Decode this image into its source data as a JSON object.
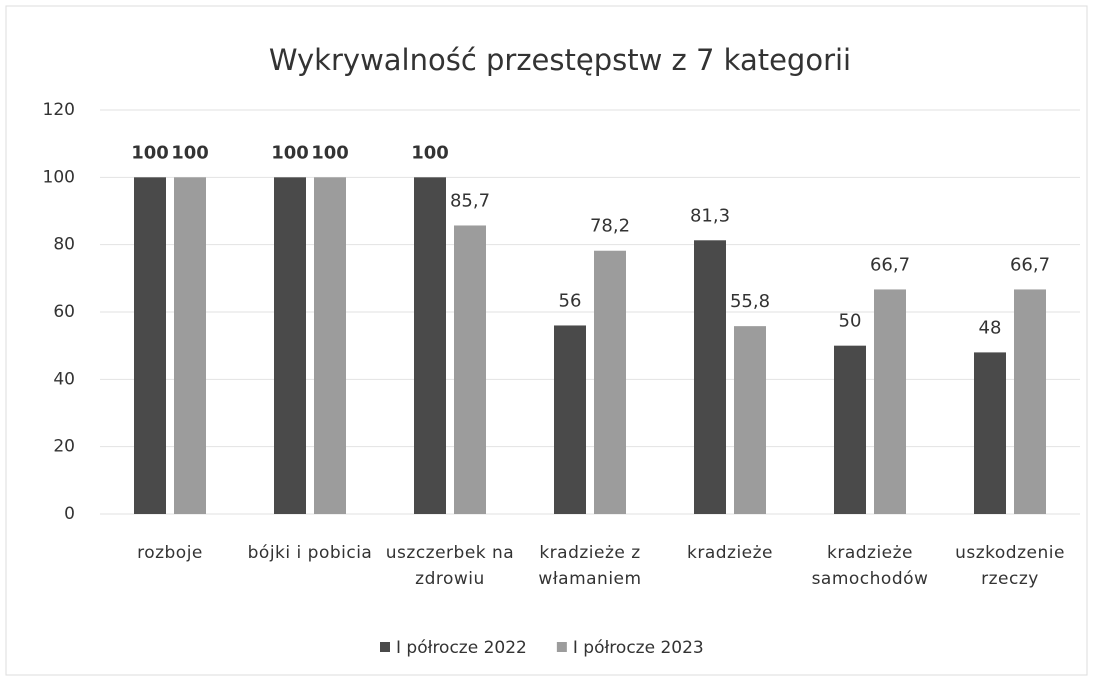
{
  "chart_data": {
    "type": "bar",
    "title": "Wykrywalność przestępstw z 7 kategorii",
    "categories": [
      "rozboje",
      "bójki i pobicia",
      "uszczerbek na zdrowiu",
      "kradzieże z włamaniem",
      "kradzieże",
      "kradzieże samochodów",
      "uszkodzenie rzeczy"
    ],
    "series": [
      {
        "name": "I półrocze 2022",
        "color": "#4a4a4a",
        "values": [
          100,
          100,
          100,
          56,
          81.3,
          50,
          48
        ],
        "value_labels": [
          "100",
          "100",
          "100",
          "56",
          "81,3",
          "50",
          "48"
        ]
      },
      {
        "name": "I półrocze 2023",
        "color": "#9c9c9c",
        "values": [
          100,
          100,
          85.7,
          78.2,
          55.8,
          66.7,
          66.7
        ],
        "value_labels": [
          "100",
          "100",
          "85,7",
          "78,2",
          "55,8",
          "66,7",
          "66,7"
        ]
      }
    ],
    "ylim": [
      0,
      120
    ],
    "yticks": [
      0,
      20,
      40,
      60,
      80,
      100,
      120
    ],
    "grid": true,
    "legend": "bottom"
  }
}
